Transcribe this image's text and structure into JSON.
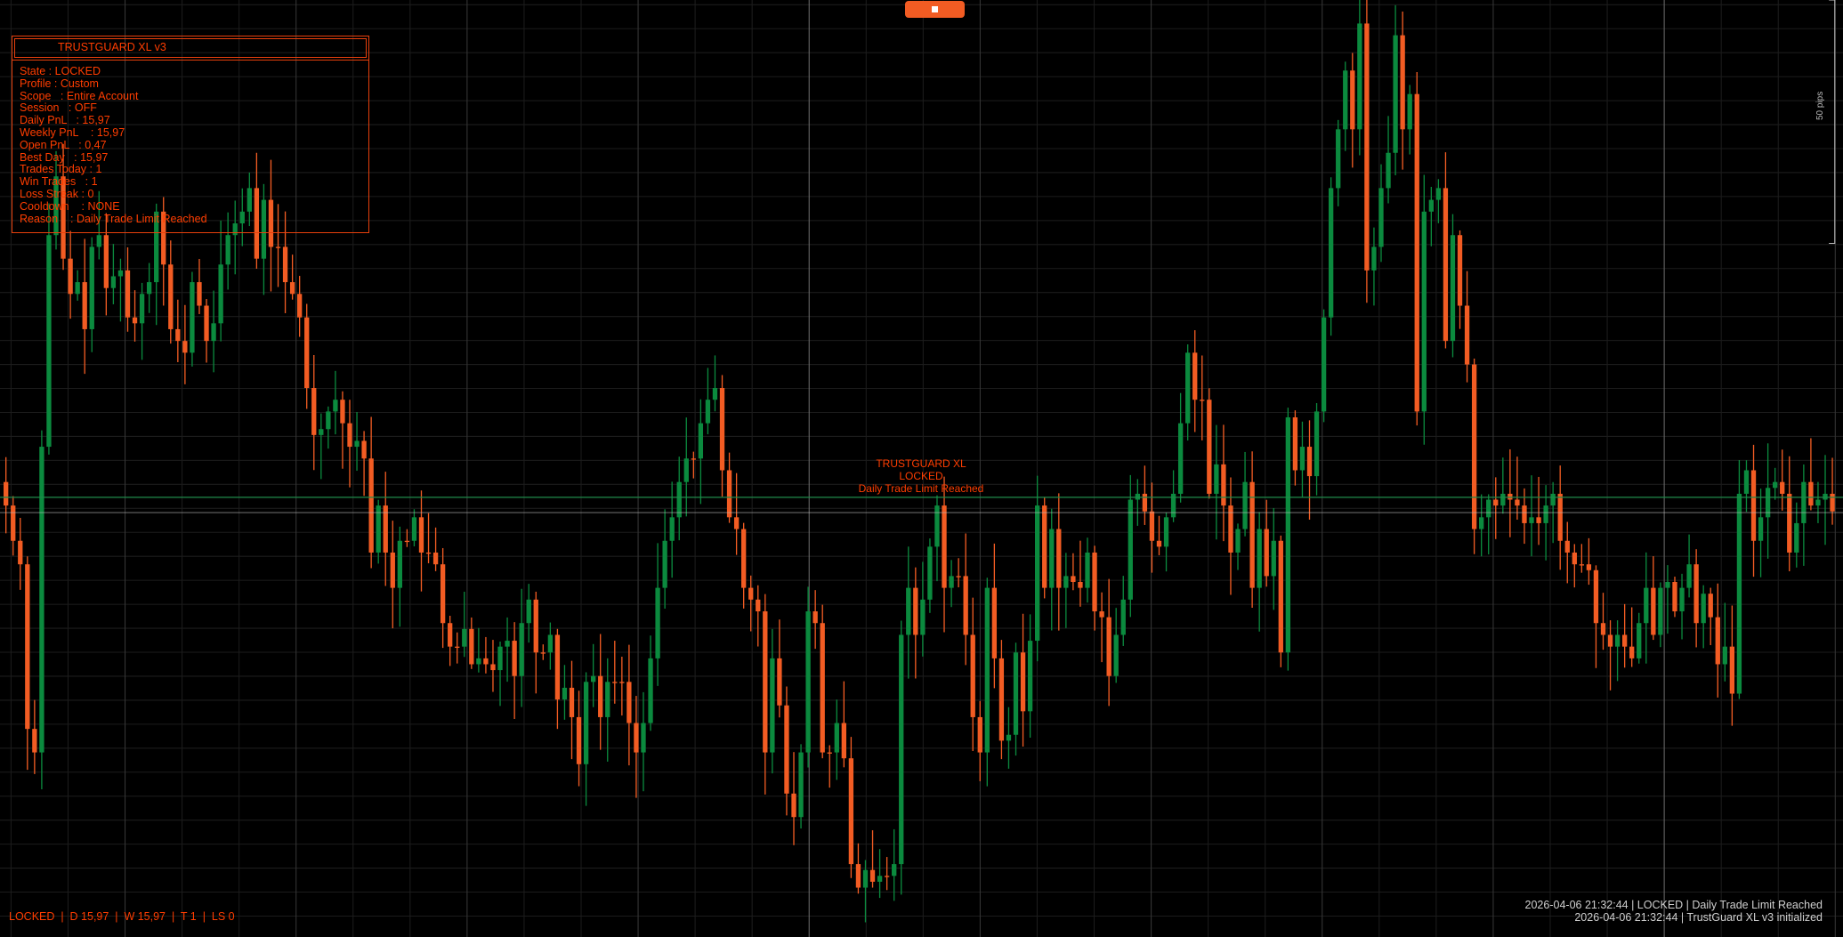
{
  "colors": {
    "accent": "#ff3d00",
    "bull": "#0b8a3e",
    "bear": "#f25c23",
    "bid_line": "#1f8a4a",
    "ask_line": "#f25c23",
    "grid": "#1c1c1c",
    "grid_major": "#363636",
    "separator": "#6a6a6a"
  },
  "toolbar": {
    "stop_icon": "stop-square-icon"
  },
  "panel": {
    "title": "TRUSTGUARD XL v3",
    "rows": [
      {
        "label": "State",
        "value": ": LOCKED"
      },
      {
        "label": "Profile",
        "value": ": Custom"
      },
      {
        "label": "Scope",
        "value": "  : Entire Account"
      },
      {
        "label": "Session",
        "value": "  : OFF"
      },
      {
        "label": "Daily PnL",
        "value": "  : 15,97"
      },
      {
        "label": "Weekly PnL",
        "value": "   : 15,97"
      },
      {
        "label": "Open PnL",
        "value": "  : 0,47"
      },
      {
        "label": "Best Day",
        "value": "  : 15,97"
      },
      {
        "label": "Trades Today",
        "value": ": 1"
      },
      {
        "label": "Win Trades",
        "value": "  : 1"
      },
      {
        "label": "Loss Streak",
        "value": ": 0"
      },
      {
        "label": "Cooldown",
        "value": "   : NONE"
      },
      {
        "label": "Reason",
        "value": "   : Daily Trade Limit Reached"
      }
    ]
  },
  "center_message": {
    "line1": "TRUSTGUARD XL",
    "line2": "LOCKED",
    "line3": "Daily Trade Limit Reached"
  },
  "status_bar": "LOCKED  |  D 15,97  |  W 15,97  |  T 1  |  LS 0",
  "log": [
    "2026-04-06 21:32:44 | LOCKED | Daily Trade Limit Reached",
    "2026-04-06 21:32:44 | TrustGuard XL v3 initialized"
  ],
  "scale_label": "50 pips",
  "chart_data": {
    "type": "candlestick",
    "grid": true,
    "closes": [
      370,
      340,
      320,
      180,
      160,
      420,
      600,
      650,
      580,
      550,
      560,
      520,
      590,
      600,
      555,
      565,
      570,
      530,
      525,
      550,
      560,
      620,
      575,
      520,
      510,
      500,
      560,
      540,
      510,
      525,
      575,
      600,
      610,
      620,
      640,
      580,
      630,
      590,
      590,
      560,
      550,
      530,
      470,
      430,
      435,
      450,
      460,
      440,
      420,
      425,
      410,
      330,
      370,
      330,
      300,
      340,
      340,
      360,
      330,
      330,
      320,
      270,
      250,
      250,
      265,
      235,
      240,
      235,
      230,
      250,
      255,
      225,
      270,
      290,
      245,
      245,
      260,
      205,
      215,
      190,
      150,
      220,
      225,
      190,
      220,
      220,
      220,
      185,
      160,
      185,
      240,
      300,
      340,
      360,
      390,
      410,
      410,
      440,
      460,
      470,
      400,
      360,
      350,
      300,
      290,
      280,
      160,
      240,
      200,
      125,
      105,
      160,
      280,
      270,
      160,
      160,
      185,
      155,
      65,
      45,
      60,
      50,
      55,
      55,
      65,
      260,
      300,
      260,
      290,
      335,
      370,
      300,
      310,
      310,
      260,
      190,
      160,
      300,
      240,
      170,
      175,
      245,
      195,
      255,
      370,
      300,
      350,
      300,
      310,
      305,
      300,
      330,
      280,
      275,
      225,
      260,
      290,
      375,
      380,
      365,
      340,
      335,
      360,
      380,
      440,
      500,
      460,
      460,
      380,
      405,
      370,
      330,
      350,
      390,
      300,
      350,
      310,
      340,
      245,
      445,
      400,
      420,
      395,
      450,
      530,
      640,
      690,
      740,
      690,
      780,
      570,
      590,
      640,
      670,
      770,
      690,
      720,
      450,
      620,
      630,
      640,
      510,
      600,
      540,
      490,
      350,
      360,
      375,
      370,
      380,
      375,
      370,
      355,
      360,
      355,
      370,
      380,
      340,
      330,
      320,
      320,
      315,
      270,
      260,
      250,
      260,
      250,
      240,
      270,
      300,
      260,
      300,
      305,
      280,
      300,
      320,
      270,
      295,
      275,
      235,
      250,
      210,
      380,
      400,
      340,
      360,
      385,
      390,
      380,
      330,
      355,
      390,
      370,
      375,
      380,
      365
    ],
    "note_direction": "higher value = higher price"
  }
}
